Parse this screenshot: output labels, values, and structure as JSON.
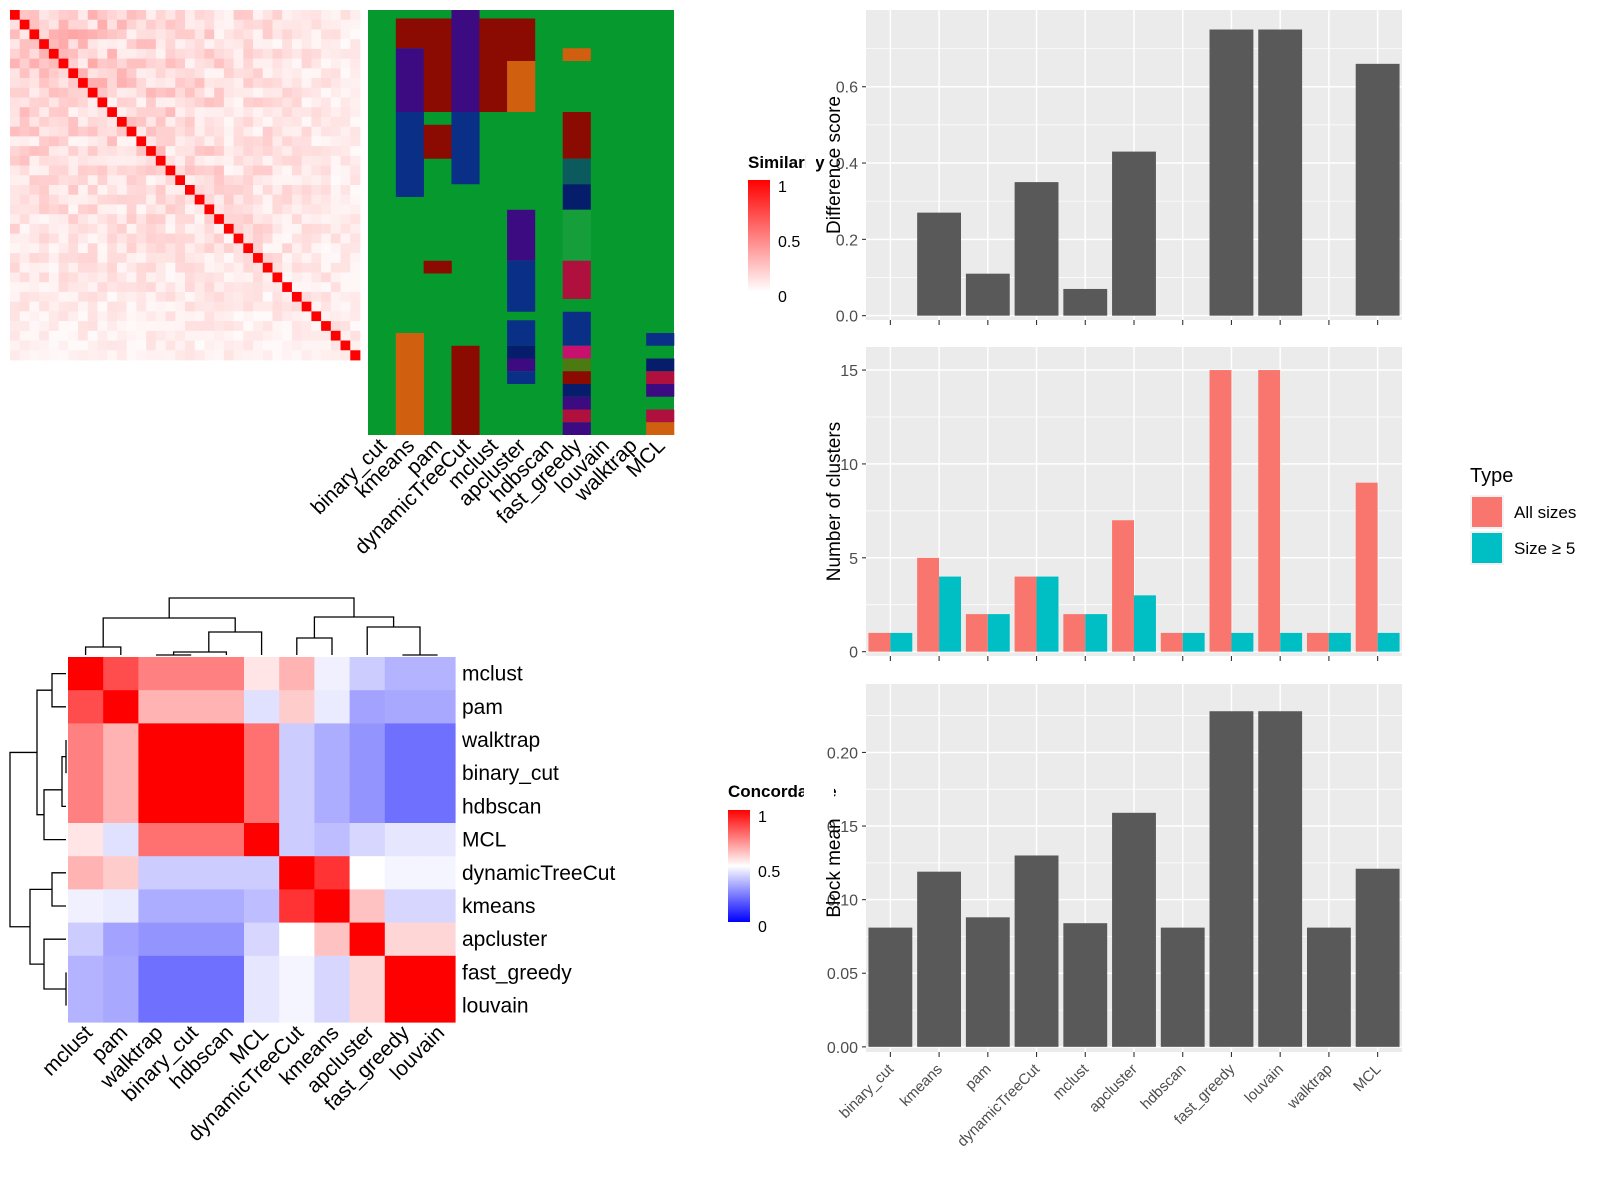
{
  "methods": [
    "binary_cut",
    "kmeans",
    "pam",
    "dynamicTreeCut",
    "mclust",
    "apcluster",
    "hdbscan",
    "fast_greedy",
    "louvain",
    "walktrap",
    "MCL"
  ],
  "similarity_heatmap": {
    "legend_title": "Similarity",
    "legend_ticks": [
      "1",
      "0.5",
      "0"
    ],
    "colors": {
      "high": "#ff0000",
      "low": "#ffffff"
    }
  },
  "membership_heatmap": {
    "columns": [
      "binary_cut",
      "kmeans",
      "pam",
      "dynamicTreeCut",
      "mclust",
      "apcluster",
      "hdbscan",
      "fast_greedy",
      "louvain",
      "walktrap",
      "MCL"
    ],
    "background": "#069a2e",
    "cluster_colors": [
      "#8b0a02",
      "#3c0b82",
      "#d0600f",
      "#0a2f86",
      "#0a5a5e",
      "#051d6b",
      "#169e3a",
      "#b0103d",
      "#c8106e",
      "#4a7a10"
    ]
  },
  "concordance_heatmap": {
    "legend_title": "Concordance",
    "legend_ticks": [
      "1",
      "0.5",
      "0"
    ],
    "row_labels": [
      "mclust",
      "pam",
      "walktrap",
      "binary_cut",
      "hdbscan",
      "MCL",
      "dynamicTreeCut",
      "kmeans",
      "apcluster",
      "fast_greedy",
      "louvain"
    ],
    "col_labels": [
      "mclust",
      "pam",
      "walktrap",
      "binary_cut",
      "hdbscan",
      "MCL",
      "dynamicTreeCut",
      "kmeans",
      "apcluster",
      "fast_greedy",
      "louvain"
    ],
    "colors": {
      "high": "#ff0000",
      "mid": "#ffffff",
      "low": "#0000ff"
    },
    "values": [
      [
        1.0,
        0.85,
        0.75,
        0.75,
        0.75,
        0.55,
        0.65,
        0.47,
        0.4,
        0.35,
        0.35
      ],
      [
        0.85,
        1.0,
        0.65,
        0.65,
        0.65,
        0.44,
        0.6,
        0.46,
        0.32,
        0.33,
        0.33
      ],
      [
        0.75,
        0.65,
        1.0,
        1.0,
        1.0,
        0.78,
        0.4,
        0.34,
        0.29,
        0.22,
        0.22
      ],
      [
        0.75,
        0.65,
        1.0,
        1.0,
        1.0,
        0.78,
        0.4,
        0.34,
        0.29,
        0.22,
        0.22
      ],
      [
        0.75,
        0.65,
        1.0,
        1.0,
        1.0,
        0.78,
        0.4,
        0.34,
        0.29,
        0.22,
        0.22
      ],
      [
        0.55,
        0.44,
        0.78,
        0.78,
        0.78,
        1.0,
        0.4,
        0.37,
        0.42,
        0.45,
        0.45
      ],
      [
        0.65,
        0.6,
        0.4,
        0.4,
        0.4,
        0.4,
        1.0,
        0.9,
        0.5,
        0.48,
        0.48
      ],
      [
        0.47,
        0.46,
        0.34,
        0.34,
        0.34,
        0.37,
        0.9,
        1.0,
        0.62,
        0.42,
        0.42
      ],
      [
        0.4,
        0.32,
        0.29,
        0.29,
        0.29,
        0.42,
        0.5,
        0.62,
        1.0,
        0.58,
        0.58
      ],
      [
        0.35,
        0.33,
        0.22,
        0.22,
        0.22,
        0.45,
        0.48,
        0.42,
        0.58,
        1.0,
        1.0
      ],
      [
        0.35,
        0.33,
        0.22,
        0.22,
        0.22,
        0.45,
        0.48,
        0.42,
        0.58,
        1.0,
        1.0
      ]
    ]
  },
  "chart_data": [
    {
      "type": "bar",
      "categories": [
        "binary_cut",
        "kmeans",
        "pam",
        "dynamicTreeCut",
        "mclust",
        "apcluster",
        "hdbscan",
        "fast_greedy",
        "louvain",
        "walktrap",
        "MCL"
      ],
      "values": [
        0,
        0.27,
        0.11,
        0.35,
        0.07,
        0.43,
        0,
        0.75,
        0.75,
        0,
        0.66
      ],
      "ylabel": "Difference score",
      "ylim": [
        0,
        0.78
      ],
      "yticks": [
        "0.0",
        "0.2",
        "0.4",
        "0.6"
      ],
      "bar_color": "#595959",
      "grid": true
    },
    {
      "type": "bar",
      "categories": [
        "binary_cut",
        "kmeans",
        "pam",
        "dynamicTreeCut",
        "mclust",
        "apcluster",
        "hdbscan",
        "fast_greedy",
        "louvain",
        "walktrap",
        "MCL"
      ],
      "ylabel": "Number of clusters",
      "ylim": [
        0,
        15.8
      ],
      "yticks": [
        "0",
        "5",
        "10",
        "15"
      ],
      "legend": {
        "title": "Type",
        "position": "right"
      },
      "series": [
        {
          "name": "All sizes",
          "color": "#f8766d",
          "values": [
            1,
            5,
            2,
            4,
            2,
            7,
            1,
            15,
            15,
            1,
            9
          ]
        },
        {
          "name": "Size ≥ 5",
          "color": "#00bfc4",
          "values": [
            1,
            4,
            2,
            4,
            2,
            3,
            1,
            1,
            1,
            1,
            1
          ]
        }
      ],
      "grid": true
    },
    {
      "type": "bar",
      "categories": [
        "binary_cut",
        "kmeans",
        "pam",
        "dynamicTreeCut",
        "mclust",
        "apcluster",
        "hdbscan",
        "fast_greedy",
        "louvain",
        "walktrap",
        "MCL"
      ],
      "values": [
        0.081,
        0.119,
        0.088,
        0.13,
        0.084,
        0.159,
        0.081,
        0.228,
        0.228,
        0.081,
        0.121
      ],
      "ylabel": "Block mean",
      "ylim": [
        0,
        0.24
      ],
      "yticks": [
        "0.00",
        "0.05",
        "0.10",
        "0.15",
        "0.20"
      ],
      "bar_color": "#595959",
      "grid": true
    }
  ]
}
